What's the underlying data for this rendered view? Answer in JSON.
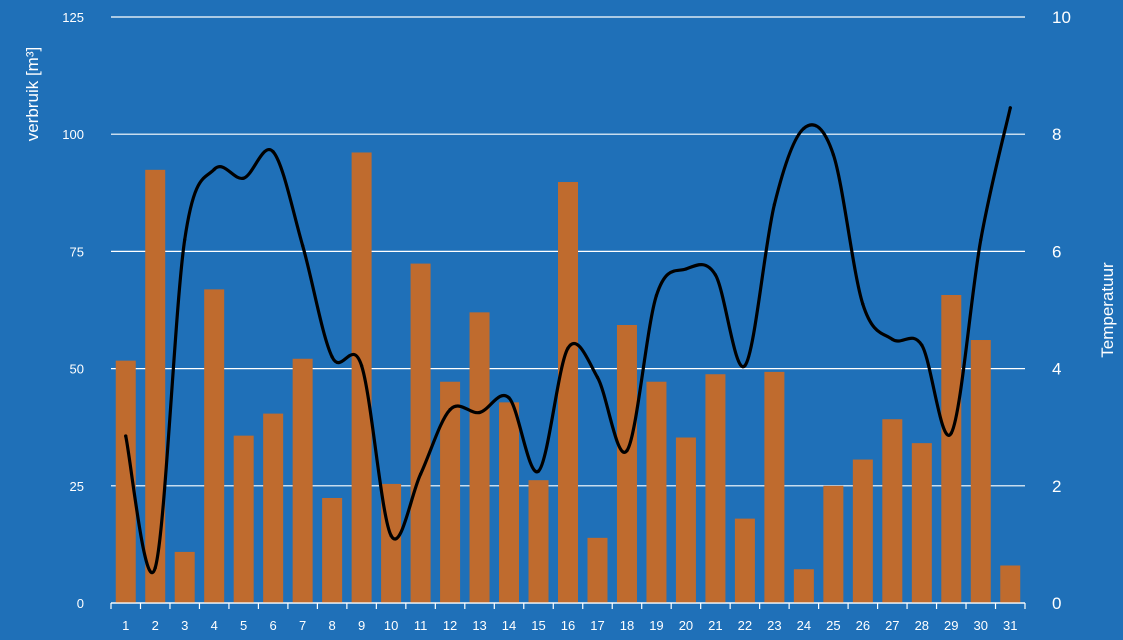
{
  "colors": {
    "background": "#1f70b8",
    "bar": "#bf6b2e",
    "line": "#000000",
    "grid": "#ffffff",
    "text": "#ffffff"
  },
  "chart_data": {
    "type": "bar",
    "combo": "bar + smoothed line (secondary axis)",
    "categories": [
      "1",
      "2",
      "3",
      "4",
      "5",
      "6",
      "7",
      "8",
      "9",
      "10",
      "11",
      "12",
      "13",
      "14",
      "15",
      "16",
      "17",
      "18",
      "19",
      "20",
      "21",
      "22",
      "23",
      "24",
      "25",
      "26",
      "27",
      "28",
      "29",
      "30",
      "31"
    ],
    "series": [
      {
        "type": "bar",
        "axis": "left",
        "values": [
          51.7,
          92.4,
          10.9,
          66.9,
          35.7,
          40.4,
          52.1,
          22.4,
          96.1,
          25.4,
          72.4,
          47.2,
          62.0,
          42.8,
          26.2,
          89.8,
          13.9,
          59.3,
          47.2,
          35.3,
          48.8,
          18.0,
          49.3,
          7.2,
          25.0,
          30.6,
          39.2,
          34.1,
          65.7,
          56.1,
          8.0
        ]
      },
      {
        "type": "line",
        "axis": "right",
        "smooth": true,
        "values": [
          2.85,
          0.6,
          6.2,
          7.4,
          7.25,
          7.7,
          6.1,
          4.2,
          4.05,
          1.15,
          2.2,
          3.3,
          3.25,
          3.5,
          2.25,
          4.35,
          3.85,
          2.6,
          5.25,
          5.7,
          5.6,
          4.05,
          6.8,
          8.1,
          7.65,
          5.1,
          4.5,
          4.4,
          2.9,
          6.2,
          8.45
        ]
      }
    ],
    "ylabel": "verbruik [m³]",
    "y2label": "Temperatuur",
    "ylim": [
      0,
      125
    ],
    "y2lim": [
      0,
      10
    ],
    "yticks": [
      "0",
      "25",
      "50",
      "75",
      "100",
      "125"
    ],
    "y2ticks": [
      "0",
      "2",
      "4",
      "6",
      "8",
      "10"
    ],
    "grid": true,
    "legend": "none"
  }
}
